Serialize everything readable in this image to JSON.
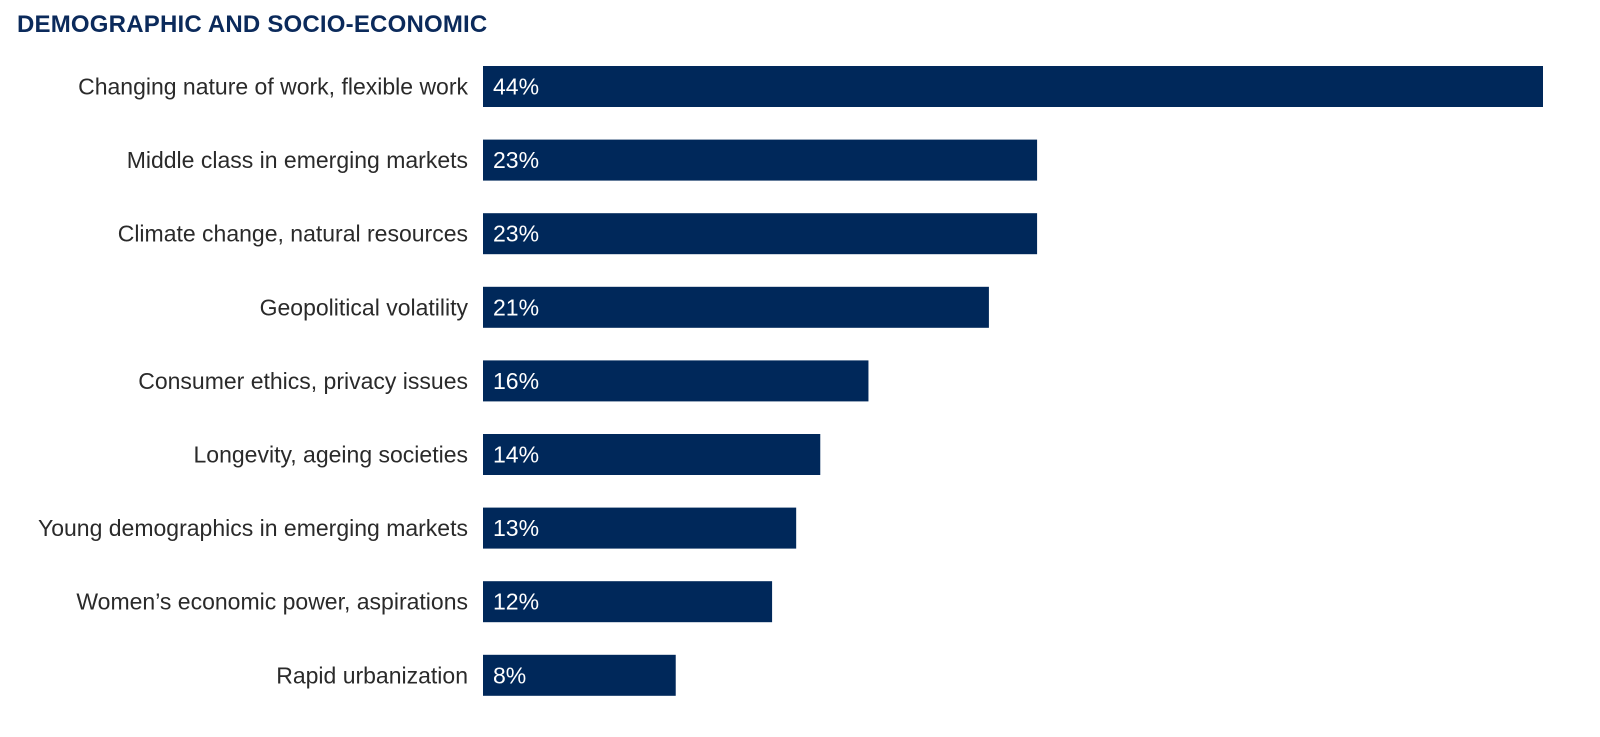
{
  "title": "DEMOGRAPHIC AND SOCIO-ECONOMIC",
  "colors": {
    "bar": "#00285a",
    "title": "#0b2a5b",
    "category_text": "#2a2a2a",
    "value_text": "#ffffff"
  },
  "chart_data": {
    "type": "bar",
    "orientation": "horizontal",
    "title": "DEMOGRAPHIC AND SOCIO-ECONOMIC",
    "xlabel": "",
    "ylabel": "",
    "categories": [
      "Changing nature of work, flexible work",
      "Middle class in emerging markets",
      "Climate change, natural resources",
      "Geopolitical volatility",
      "Consumer ethics, privacy issues",
      "Longevity, ageing societies",
      "Young demographics in emerging markets",
      "Women’s economic power, aspirations",
      "Rapid urbanization"
    ],
    "values": [
      44,
      23,
      23,
      21,
      16,
      14,
      13,
      12,
      8
    ],
    "value_labels": [
      "44%",
      "23%",
      "23%",
      "21%",
      "16%",
      "14%",
      "13%",
      "12%",
      "8%"
    ],
    "unit": "%",
    "xlim": [
      0,
      44
    ],
    "grid": false,
    "legend": "none"
  }
}
